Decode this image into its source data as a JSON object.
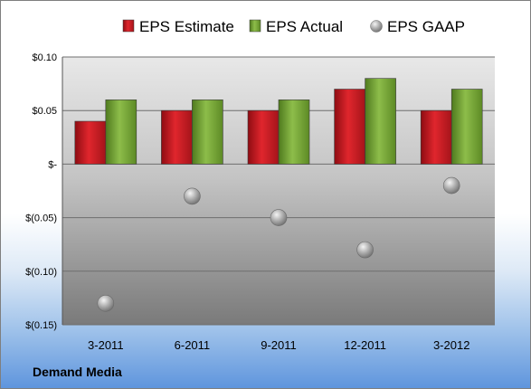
{
  "chart_data": {
    "type": "bar",
    "categories": [
      "3-2011",
      "6-2011",
      "9-2011",
      "12-2011",
      "3-2012"
    ],
    "series": [
      {
        "name": "EPS Estimate",
        "kind": "bar",
        "color": "#c0141c",
        "values": [
          0.04,
          0.05,
          0.05,
          0.07,
          0.05
        ]
      },
      {
        "name": "EPS Actual",
        "kind": "bar",
        "color": "#72a132",
        "values": [
          0.06,
          0.06,
          0.06,
          0.08,
          0.07
        ]
      },
      {
        "name": "EPS GAAP",
        "kind": "scatter",
        "color": "#a8a8a8",
        "values": [
          -0.13,
          -0.03,
          -0.05,
          -0.08,
          -0.02
        ]
      }
    ],
    "ylim": [
      -0.15,
      0.1
    ],
    "yticks": [
      {
        "value": 0.1,
        "label": "$0.10"
      },
      {
        "value": 0.05,
        "label": "$0.05"
      },
      {
        "value": 0,
        "label": "$-"
      },
      {
        "value": -0.05,
        "label": "$(0.05)"
      },
      {
        "value": -0.1,
        "label": "$(0.10)"
      },
      {
        "value": -0.15,
        "label": "$(0.15)"
      }
    ],
    "grid": true,
    "legend": "top"
  },
  "footer": {
    "company": "Demand Media"
  }
}
